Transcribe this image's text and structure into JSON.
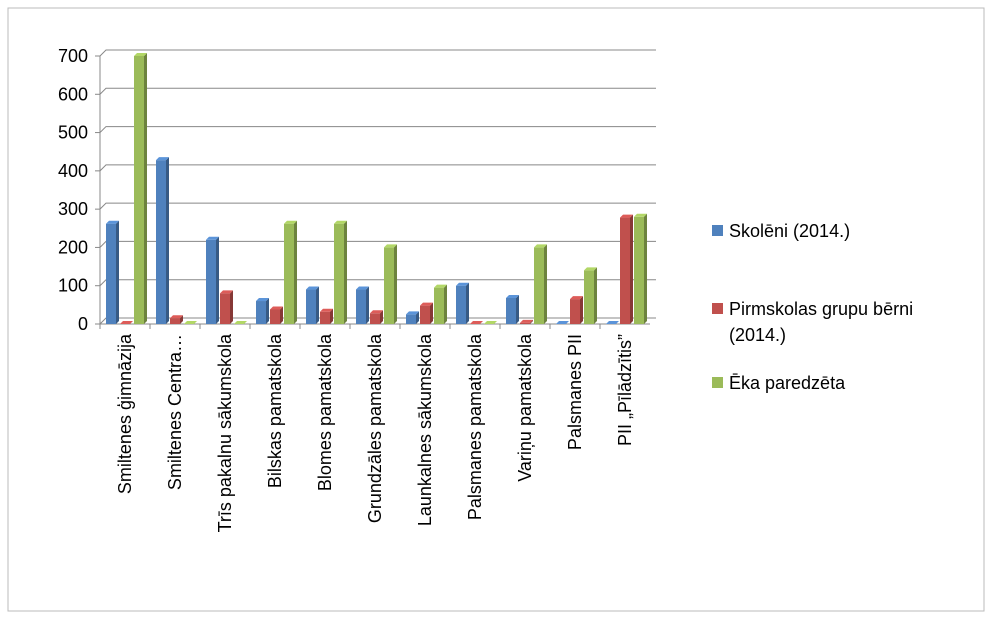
{
  "chart_data": {
    "type": "bar",
    "categories": [
      "Smiltenes ģimnāzija",
      "Smiltenes Centra…",
      "Trīs pakalnu sākumskola",
      "Bilskas pamatskola",
      "Blomes pamatskola",
      "Grundzāles pamatskola",
      "Launkalnes sākumskola",
      "Palsmanes pamatskola",
      "Variņu pamatskola",
      "Palsmanes PII",
      "PII „Pīlādzītis”"
    ],
    "series": [
      {
        "name": "Skolēni (2014.)",
        "color": "#4f81bd",
        "values": [
          262,
          428,
          220,
          60,
          90,
          90,
          25,
          100,
          68,
          0,
          0
        ]
      },
      {
        "name": "Pirmskolas grupu bērni (2014.)",
        "color": "#c0504d",
        "values": [
          0,
          15,
          80,
          38,
          32,
          28,
          48,
          0,
          3,
          65,
          278
        ]
      },
      {
        "name": "Ēka paredzēta",
        "color": "#9bbb59",
        "values": [
          700,
          0,
          0,
          262,
          262,
          200,
          95,
          0,
          200,
          140,
          280
        ]
      }
    ],
    "ylim": [
      0,
      700
    ],
    "yticks": [
      0,
      100,
      200,
      300,
      400,
      500,
      600,
      700
    ],
    "grid": true,
    "legend": "right"
  }
}
